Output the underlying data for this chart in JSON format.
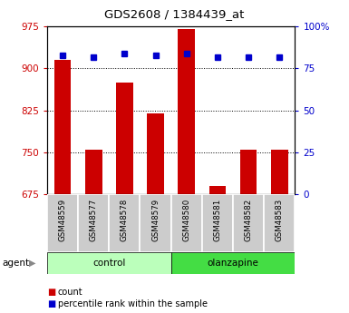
{
  "title": "GDS2608 / 1384439_at",
  "samples": [
    "GSM48559",
    "GSM48577",
    "GSM48578",
    "GSM48579",
    "GSM48580",
    "GSM48581",
    "GSM48582",
    "GSM48583"
  ],
  "counts": [
    915,
    755,
    875,
    820,
    970,
    690,
    755,
    755
  ],
  "percentiles": [
    83,
    82,
    84,
    83,
    84,
    82,
    82,
    82
  ],
  "ymin": 675,
  "ymax": 975,
  "yticks": [
    675,
    750,
    825,
    900,
    975
  ],
  "y2min": 0,
  "y2max": 100,
  "y2ticks": [
    0,
    25,
    50,
    75,
    100
  ],
  "bar_color": "#cc0000",
  "dot_color": "#0000cc",
  "control_bg": "#bbffbb",
  "olanzapine_bg": "#44dd44",
  "xlabel_bg": "#cccccc",
  "left_tick_color": "#cc0000",
  "right_tick_color": "#0000cc",
  "agent_label": "agent",
  "control_label": "control",
  "olanzapine_label": "olanzapine",
  "legend_count_label": "count",
  "legend_percentile_label": "percentile rank within the sample",
  "n_control": 4,
  "n_olanzapine": 4
}
